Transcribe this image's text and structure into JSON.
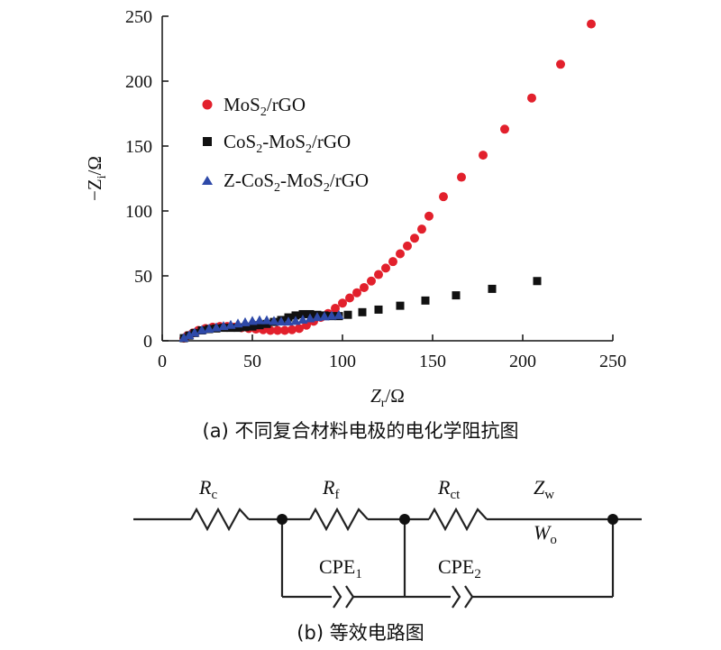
{
  "chart_data": {
    "type": "scatter",
    "xlabel": "Z_r/Ω",
    "ylabel": "−Z_i/Ω",
    "xlim": [
      0,
      250
    ],
    "ylim": [
      0,
      250
    ],
    "xticks": [
      0,
      50,
      100,
      150,
      200,
      250
    ],
    "yticks": [
      0,
      50,
      100,
      150,
      200,
      250
    ],
    "grid": false,
    "legend_position": "top-left",
    "series": [
      {
        "name": "MoS2/rGO",
        "marker": "circle",
        "color": "#e2202c",
        "points": [
          [
            12,
            2
          ],
          [
            14,
            4
          ],
          [
            17,
            6
          ],
          [
            20,
            8
          ],
          [
            24,
            9.5
          ],
          [
            28,
            10.5
          ],
          [
            32,
            11
          ],
          [
            36,
            11
          ],
          [
            40,
            10.5
          ],
          [
            44,
            10
          ],
          [
            48,
            9.5
          ],
          [
            52,
            9
          ],
          [
            56,
            8.5
          ],
          [
            60,
            8
          ],
          [
            64,
            8
          ],
          [
            68,
            8
          ],
          [
            72,
            8.5
          ],
          [
            76,
            9.5
          ],
          [
            80,
            12
          ],
          [
            84,
            15
          ],
          [
            88,
            18
          ],
          [
            92,
            21
          ],
          [
            96,
            25
          ],
          [
            100,
            29
          ],
          [
            104,
            33
          ],
          [
            108,
            37
          ],
          [
            112,
            41
          ],
          [
            116,
            46
          ],
          [
            120,
            51
          ],
          [
            124,
            56
          ],
          [
            128,
            61
          ],
          [
            132,
            67
          ],
          [
            136,
            73
          ],
          [
            140,
            79
          ],
          [
            144,
            86
          ],
          [
            148,
            96
          ],
          [
            156,
            111
          ],
          [
            166,
            126
          ],
          [
            178,
            143
          ],
          [
            190,
            163
          ],
          [
            205,
            187
          ],
          [
            221,
            213
          ],
          [
            238,
            244
          ]
        ]
      },
      {
        "name": "CoS2-MoS2/rGO",
        "marker": "square",
        "color": "#111111",
        "points": [
          [
            12,
            2
          ],
          [
            15,
            4
          ],
          [
            18,
            6
          ],
          [
            22,
            8
          ],
          [
            26,
            9
          ],
          [
            30,
            9.5
          ],
          [
            34,
            10
          ],
          [
            38,
            10
          ],
          [
            42,
            10
          ],
          [
            46,
            10.5
          ],
          [
            50,
            11
          ],
          [
            54,
            12
          ],
          [
            58,
            13
          ],
          [
            62,
            14.5
          ],
          [
            66,
            16
          ],
          [
            70,
            18
          ],
          [
            74,
            19.5
          ],
          [
            78,
            20.5
          ],
          [
            82,
            20.5
          ],
          [
            86,
            20
          ],
          [
            90,
            19.5
          ],
          [
            94,
            19
          ],
          [
            98,
            19
          ],
          [
            103,
            20
          ],
          [
            111,
            22
          ],
          [
            120,
            24
          ],
          [
            132,
            27
          ],
          [
            146,
            31
          ],
          [
            163,
            35
          ],
          [
            183,
            40
          ],
          [
            208,
            46
          ]
        ]
      },
      {
        "name": "Z-CoS2-MoS2/rGO",
        "marker": "triangle",
        "color": "#2e49a8",
        "points": [
          [
            12,
            2
          ],
          [
            15,
            4
          ],
          [
            18,
            6
          ],
          [
            22,
            8
          ],
          [
            26,
            9
          ],
          [
            30,
            10
          ],
          [
            34,
            11
          ],
          [
            38,
            12
          ],
          [
            42,
            13
          ],
          [
            46,
            14
          ],
          [
            50,
            15
          ],
          [
            54,
            15.5
          ],
          [
            58,
            15.5
          ],
          [
            62,
            15
          ],
          [
            66,
            14.5
          ],
          [
            70,
            14.5
          ],
          [
            74,
            15
          ],
          [
            78,
            16
          ],
          [
            82,
            17
          ],
          [
            86,
            18
          ],
          [
            90,
            18.5
          ],
          [
            94,
            19
          ],
          [
            98,
            19.5
          ]
        ]
      }
    ]
  },
  "legend": [
    {
      "base": "MoS",
      "sub": "2",
      "rest": "/rGO"
    },
    {
      "base": "CoS",
      "sub": "2",
      "mid": "-MoS",
      "sub2": "2",
      "rest": "/rGO"
    },
    {
      "base": "Z-CoS",
      "sub": "2",
      "mid": "-MoS",
      "sub2": "2",
      "rest": "/rGO"
    }
  ],
  "axis_labels": {
    "x_main": "Z",
    "x_sub": "r",
    "x_unit": "/Ω",
    "y_main": "−Z",
    "y_sub": "i",
    "y_unit": "/Ω"
  },
  "captions": {
    "a": "(a) 不同复合材料电极的电化学阻抗图",
    "b": "(b) 等效电路图"
  },
  "circuit": {
    "Rc": {
      "main": "R",
      "sub": "c"
    },
    "Rf": {
      "main": "R",
      "sub": "f"
    },
    "Rct": {
      "main": "R",
      "sub": "ct"
    },
    "Zw": {
      "main": "Z",
      "sub": "w"
    },
    "Wo": {
      "main": "W",
      "sub": "o"
    },
    "CPE1": {
      "main": "CPE",
      "sub": "1"
    },
    "CPE2": {
      "main": "CPE",
      "sub": "2"
    }
  }
}
